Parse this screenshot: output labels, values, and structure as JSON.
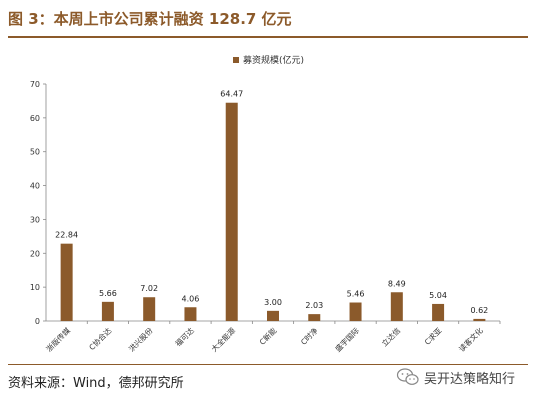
{
  "figure": {
    "title": "图 3：本周上市公司累计融资 128.7 亿元",
    "source": "资料来源：Wind，德邦研究所",
    "watermark": "吴开达策略知行",
    "bar_color": "#8b5a2b"
  },
  "chart_data": {
    "type": "bar",
    "title": "",
    "xlabel": "",
    "ylabel": "",
    "categories": [
      "浙版传媒",
      "C协合达",
      "洪兴股份",
      "福可达",
      "大全能源",
      "C新能",
      "C时净",
      "盛宇国际",
      "立达信",
      "C求亚",
      "读客文化"
    ],
    "series": [
      {
        "name": "募资规模(亿元)",
        "values": [
          22.84,
          5.66,
          7.02,
          4.06,
          64.47,
          3.0,
          2.03,
          5.46,
          8.49,
          5.04,
          0.62
        ]
      }
    ],
    "data_labels": [
      "22.84",
      "5.66",
      "7.02",
      "4.06",
      "64.47",
      "3.00",
      "2.03",
      "5.46",
      "8.49",
      "5.04",
      "0.62"
    ],
    "ylim": [
      0,
      70
    ],
    "yticks": [
      0,
      10,
      20,
      30,
      40,
      50,
      60,
      70
    ],
    "grid": false,
    "legend": "top-center"
  }
}
